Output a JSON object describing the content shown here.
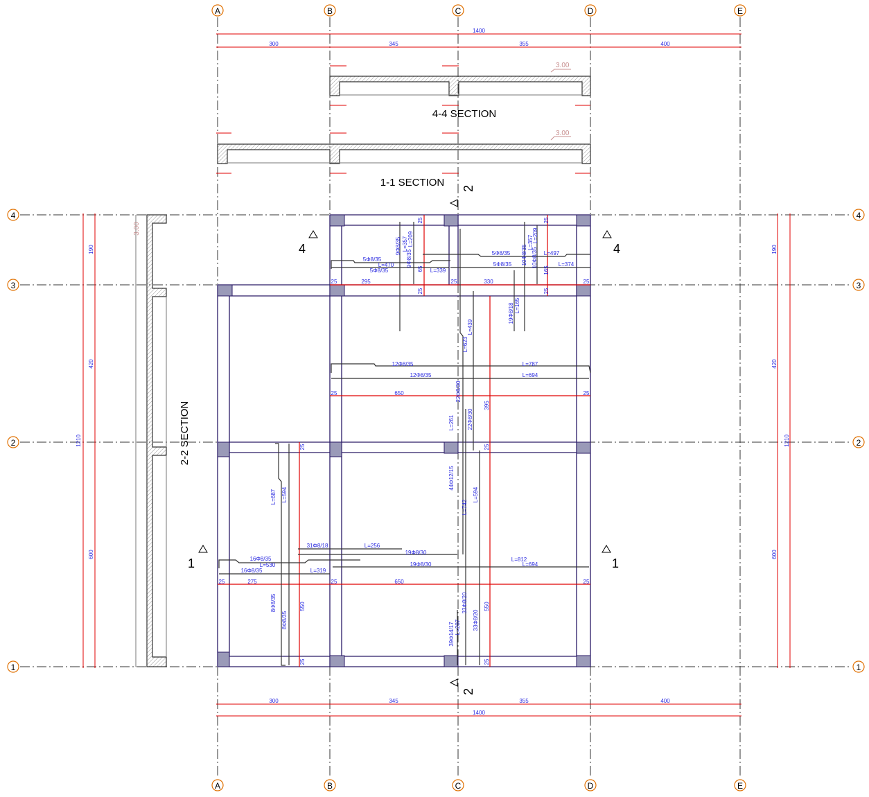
{
  "grid": {
    "columns": [
      "A",
      "B",
      "C",
      "D",
      "E"
    ],
    "rows": [
      "4",
      "3",
      "2",
      "1"
    ]
  },
  "dimensions": {
    "total_x": "1400",
    "spans_x": [
      "300",
      "345",
      "355",
      "400"
    ],
    "total_y": "1210",
    "spans_y": [
      "190",
      "420",
      "600"
    ]
  },
  "sections": {
    "s44": "4-4 SECTION",
    "s11": "1-1 SECTION",
    "s22": "2-2 SECTION",
    "elevation": "3.00",
    "cut_marks": [
      "2",
      "4",
      "1"
    ]
  },
  "plan_labels": {
    "edge": "25",
    "span_295": "295",
    "span_330": "330",
    "span_650": "650",
    "span_275": "275",
    "h_395": "395",
    "h_550": "550",
    "h_165": "165",
    "h_65": "65",
    "r1": "9Φ8/35",
    "r2": "L=357",
    "r3": "L=209",
    "r4": "9Φ8/35",
    "r5": "L=339",
    "r6": "5Φ8/35",
    "r7": "L=470",
    "r8": "5Φ8/35",
    "r9": "5Φ8/35",
    "r10": "L=497",
    "r11": "5Φ8/35",
    "r12": "L=374",
    "r13": "10Φ8/35",
    "r14": "L=357",
    "r15": "L=209",
    "r16": "10Φ8/35",
    "r17": "19Φ8/18",
    "r18": "L=165",
    "r19": "L=439",
    "r20": "L=623",
    "r21": "12Φ8/35",
    "r22": "L=787",
    "r23": "12Φ8/35",
    "r24": "L=694",
    "r25": "22Φ8/30",
    "r26": "22Φ8/30",
    "r27": "L=261",
    "r28": "L=687",
    "r29": "L=594",
    "r30": "44Φ12/15",
    "r31": "L=742",
    "r32": "L=594",
    "r33": "31Φ8/18",
    "r34": "L=256",
    "r35": "19Φ8/30",
    "r36": "16Φ8/35",
    "r37": "L=530",
    "r38": "16Φ8/35",
    "r39": "L=319",
    "r40": "19Φ8/30",
    "r41": "L=812",
    "r42": "L=694",
    "r43": "8Φ8/35",
    "r44": "8Φ8/35",
    "r45": "33Φ8/20",
    "r46": "33Φ8/20",
    "r47": "39Φ14/17",
    "r48": "L=207"
  },
  "colors": {
    "grid_bubble": "#e07000",
    "dimension": "#e00000",
    "annotation": "#2b2be0",
    "beam": "#2a1a66"
  }
}
